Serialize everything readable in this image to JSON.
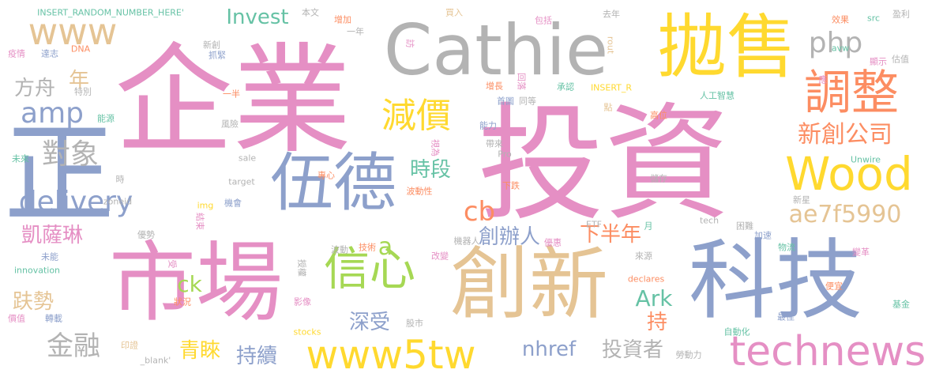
{
  "colors": {
    "pink": "#e58fc4",
    "blue": "#8da0cb",
    "gold": "#ffd92f",
    "tan": "#e5c494",
    "green": "#a6d854",
    "orange": "#fc8d62",
    "teal": "#66c2a5",
    "gray": "#b3b3b3",
    "slate": "#8e98b3"
  },
  "words": [
    {
      "text": "企業",
      "color": "pink"
    },
    {
      "text": "投資",
      "color": "pink"
    },
    {
      "text": "市場",
      "color": "pink"
    },
    {
      "text": "科技",
      "color": "blue"
    },
    {
      "text": "創新",
      "color": "tan"
    },
    {
      "text": "正",
      "color": "blue"
    },
    {
      "text": "Cathie",
      "color": "gray"
    },
    {
      "text": "拋售",
      "color": "gold"
    },
    {
      "text": "伍德",
      "color": "blue"
    },
    {
      "text": "信心",
      "color": "green"
    },
    {
      "text": "調整",
      "color": "orange"
    },
    {
      "text": "Wood",
      "color": "gold"
    },
    {
      "text": "www5tw",
      "color": "gold"
    },
    {
      "text": "technews",
      "color": "pink"
    },
    {
      "text": "減價",
      "color": "gold"
    },
    {
      "text": "www",
      "color": "tan"
    },
    {
      "text": "delivery",
      "color": "blue"
    },
    {
      "text": "amp",
      "color": "blue"
    },
    {
      "text": "php",
      "color": "gray"
    },
    {
      "text": "對象",
      "color": "gray"
    },
    {
      "text": "新創公司",
      "color": "orange"
    },
    {
      "text": "ae7f5990",
      "color": "tan"
    },
    {
      "text": "金融",
      "color": "gray"
    },
    {
      "text": "cb",
      "color": "orange"
    },
    {
      "text": "Invest",
      "color": "teal"
    },
    {
      "text": "凱薩琳",
      "color": "pink"
    },
    {
      "text": "創辦人",
      "color": "blue"
    },
    {
      "text": "下半年",
      "color": "orange"
    },
    {
      "text": "時段",
      "color": "teal"
    },
    {
      "text": "方舟",
      "color": "gray"
    },
    {
      "text": "趺勢",
      "color": "tan"
    },
    {
      "text": "深受",
      "color": "blue"
    },
    {
      "text": "青睞",
      "color": "gold"
    },
    {
      "text": "持續",
      "color": "blue"
    },
    {
      "text": "投資者",
      "color": "gray"
    },
    {
      "text": "nhref",
      "color": "blue"
    },
    {
      "text": "Ark",
      "color": "teal"
    },
    {
      "text": "ck",
      "color": "green"
    },
    {
      "text": "持",
      "color": "orange"
    },
    {
      "text": "年",
      "color": "tan"
    },
    {
      "text": "a",
      "color": "green"
    },
    {
      "text": "INSERT_RANDOM_NUMBER_HERE'",
      "color": "teal"
    },
    {
      "text": "本文",
      "color": "gray"
    },
    {
      "text": "增加",
      "color": "orange"
    },
    {
      "text": "買入",
      "color": "tan"
    },
    {
      "text": "包括",
      "color": "pink"
    },
    {
      "text": "去年",
      "color": "gray"
    },
    {
      "text": "效果",
      "color": "orange"
    },
    {
      "text": "src",
      "color": "teal"
    },
    {
      "text": "盈利",
      "color": "gray"
    },
    {
      "text": "疫情",
      "color": "pink"
    },
    {
      "text": "達志",
      "color": "blue"
    },
    {
      "text": "DNA",
      "color": "orange"
    },
    {
      "text": "一年",
      "color": "gray"
    },
    {
      "text": "新創",
      "color": "gray"
    },
    {
      "text": "抓緊",
      "color": "blue"
    },
    {
      "text": "訪",
      "color": "pink"
    },
    {
      "text": "rout",
      "color": "tan"
    },
    {
      "text": "avw",
      "color": "teal"
    },
    {
      "text": "顯示",
      "color": "pink"
    },
    {
      "text": "估值",
      "color": "gray"
    },
    {
      "text": "特別",
      "color": "gray"
    },
    {
      "text": "一半",
      "color": "orange"
    },
    {
      "text": "增長",
      "color": "orange"
    },
    {
      "text": "回落",
      "color": "pink"
    },
    {
      "text": "首圖",
      "color": "blue"
    },
    {
      "text": "同等",
      "color": "gray"
    },
    {
      "text": "承認",
      "color": "teal"
    },
    {
      "text": "INSERT_R",
      "color": "gold"
    },
    {
      "text": "人工智慧",
      "color": "teal"
    },
    {
      "text": "能源",
      "color": "teal"
    },
    {
      "text": "風險",
      "color": "gray"
    },
    {
      "text": "能力",
      "color": "blue"
    },
    {
      "text": "高位",
      "color": "orange"
    },
    {
      "text": "帶來",
      "color": "gray"
    },
    {
      "text": "Pro",
      "color": "gray"
    },
    {
      "text": "視為",
      "color": "pink"
    },
    {
      "text": "未來",
      "color": "teal"
    },
    {
      "text": "sale",
      "color": "gray"
    },
    {
      "text": "專心",
      "color": "orange"
    },
    {
      "text": "時",
      "color": "gray"
    },
    {
      "text": "target",
      "color": "gray"
    },
    {
      "text": "波動性",
      "color": "orange"
    },
    {
      "text": "下跌",
      "color": "orange"
    },
    {
      "text": "儲存",
      "color": "gray"
    },
    {
      "text": "Unwire",
      "color": "teal"
    },
    {
      "text": "zoneid",
      "color": "gray"
    },
    {
      "text": "機會",
      "color": "blue"
    },
    {
      "text": "img",
      "color": "gold"
    },
    {
      "text": "新星",
      "color": "gray"
    },
    {
      "text": "結束",
      "color": "pink"
    },
    {
      "text": "ETF",
      "color": "gray"
    },
    {
      "text": "月",
      "color": "teal"
    },
    {
      "text": "tech",
      "color": "gray"
    },
    {
      "text": "優勢",
      "color": "gray"
    },
    {
      "text": "困難",
      "color": "gray"
    },
    {
      "text": "加速",
      "color": "blue"
    },
    {
      "text": "物流",
      "color": "teal"
    },
    {
      "text": "波動",
      "color": "gray"
    },
    {
      "text": "技術",
      "color": "orange"
    },
    {
      "text": "機器人",
      "color": "gray"
    },
    {
      "text": "優惠",
      "color": "pink"
    },
    {
      "text": "未能",
      "color": "blue"
    },
    {
      "text": "受",
      "color": "pink"
    },
    {
      "text": "改變",
      "color": "pink"
    },
    {
      "text": "來源",
      "color": "gray"
    },
    {
      "text": "變革",
      "color": "pink"
    },
    {
      "text": "innovation",
      "color": "teal"
    },
    {
      "text": "授權",
      "color": "gray"
    },
    {
      "text": "便宜",
      "color": "orange"
    },
    {
      "text": "狀況",
      "color": "orange"
    },
    {
      "text": "影像",
      "color": "pink"
    },
    {
      "text": "declares",
      "color": "orange"
    },
    {
      "text": "價值",
      "color": "pink"
    },
    {
      "text": "轉載",
      "color": "blue"
    },
    {
      "text": "基金",
      "color": "teal"
    },
    {
      "text": "stocks",
      "color": "gold"
    },
    {
      "text": "股市",
      "color": "gray"
    },
    {
      "text": "自動化",
      "color": "teal"
    },
    {
      "text": "最佳",
      "color": "blue"
    },
    {
      "text": "印證",
      "color": "tan"
    },
    {
      "text": "_blank'",
      "color": "gray"
    },
    {
      "text": "勞動力",
      "color": "gray"
    },
    {
      "text": "點",
      "color": "tan"
    },
    {
      "text": "應",
      "color": "pink"
    }
  ]
}
